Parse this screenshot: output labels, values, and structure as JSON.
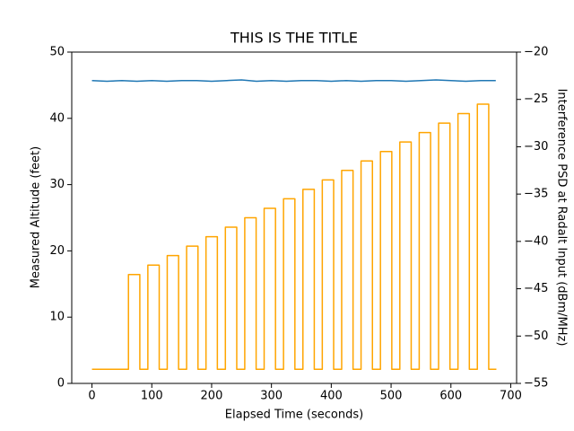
{
  "chart_data": {
    "type": "line",
    "title": "THIS IS THE TITLE",
    "x_label": "Elapsed Time (seconds)",
    "y_label": "Measured Altitude (feet)",
    "y2_label": "Interference PSD at Radalt Input (dBm/MHz)",
    "xlim": [
      -33.8,
      709.8
    ],
    "xticks": [
      0,
      100,
      200,
      300,
      400,
      500,
      600,
      700
    ],
    "ylim": [
      0,
      50
    ],
    "yticks": [
      0,
      10,
      20,
      30,
      40,
      50
    ],
    "y2lim": [
      -55,
      -20
    ],
    "y2ticks": [
      {
        "value": -55,
        "label": "−55"
      },
      {
        "value": -50,
        "label": "−50"
      },
      {
        "value": -45,
        "label": "−45"
      },
      {
        "value": -40,
        "label": "−40"
      },
      {
        "value": -35,
        "label": "−35"
      },
      {
        "value": -30,
        "label": "−30"
      },
      {
        "value": -25,
        "label": "−25"
      },
      {
        "value": -20,
        "label": "−20"
      }
    ],
    "series": [
      {
        "name": "Measured Altitude",
        "color": "#1f77b4",
        "x": [
          0,
          25,
          50,
          75,
          100,
          125,
          150,
          175,
          200,
          225,
          250,
          275,
          300,
          325,
          350,
          375,
          400,
          425,
          450,
          475,
          500,
          525,
          550,
          575,
          600,
          625,
          650,
          675
        ],
        "values": [
          45.7,
          45.6,
          45.7,
          45.6,
          45.7,
          45.6,
          45.7,
          45.7,
          45.6,
          45.7,
          45.8,
          45.6,
          45.7,
          45.6,
          45.7,
          45.7,
          45.6,
          45.7,
          45.6,
          45.7,
          45.7,
          45.6,
          45.7,
          45.8,
          45.7,
          45.6,
          45.7,
          45.7
        ]
      },
      {
        "name": "Interference PSD",
        "color": "#ffa500",
        "axis": "y2",
        "x": [
          0,
          61,
          61,
          80,
          80,
          93.4,
          93.4,
          112.4,
          112.4,
          125.8,
          125.8,
          144.8,
          144.8,
          158.2,
          158.2,
          177.2,
          177.2,
          190.6,
          190.6,
          209.6,
          209.6,
          223,
          223,
          242,
          242,
          255.4,
          255.4,
          274.4,
          274.4,
          287.8,
          287.8,
          306.8,
          306.8,
          320.2,
          320.2,
          339.2,
          339.2,
          352.6,
          352.6,
          371.6,
          371.6,
          385,
          385,
          404,
          404,
          417.4,
          417.4,
          436.4,
          436.4,
          449.8,
          449.8,
          468.8,
          468.8,
          482.2,
          482.2,
          501.2,
          501.2,
          514.6,
          514.6,
          533.6,
          533.6,
          547,
          547,
          566,
          566,
          579.4,
          579.4,
          598.4,
          598.4,
          611.8,
          611.8,
          630.8,
          630.8,
          644.2,
          644.2,
          663.2,
          663.2,
          676
        ],
        "values": [
          -53.5,
          -53.5,
          -43.5,
          -43.5,
          -53.5,
          -53.5,
          -42.5,
          -42.5,
          -53.5,
          -53.5,
          -41.5,
          -41.5,
          -53.5,
          -53.5,
          -40.5,
          -40.5,
          -53.5,
          -53.5,
          -39.5,
          -39.5,
          -53.5,
          -53.5,
          -38.5,
          -38.5,
          -53.5,
          -53.5,
          -37.5,
          -37.5,
          -53.5,
          -53.5,
          -36.5,
          -36.5,
          -53.5,
          -53.5,
          -35.5,
          -35.5,
          -53.5,
          -53.5,
          -34.5,
          -34.5,
          -53.5,
          -53.5,
          -33.5,
          -33.5,
          -53.5,
          -53.5,
          -32.5,
          -32.5,
          -53.5,
          -53.5,
          -31.5,
          -31.5,
          -53.5,
          -53.5,
          -30.5,
          -30.5,
          -53.5,
          -53.5,
          -29.5,
          -29.5,
          -53.5,
          -53.5,
          -28.5,
          -28.5,
          -53.5,
          -53.5,
          -27.5,
          -27.5,
          -53.5,
          -53.5,
          -26.5,
          -26.5,
          -53.5,
          -53.5,
          -25.5,
          -25.5,
          -53.5,
          -53.5
        ]
      }
    ]
  }
}
